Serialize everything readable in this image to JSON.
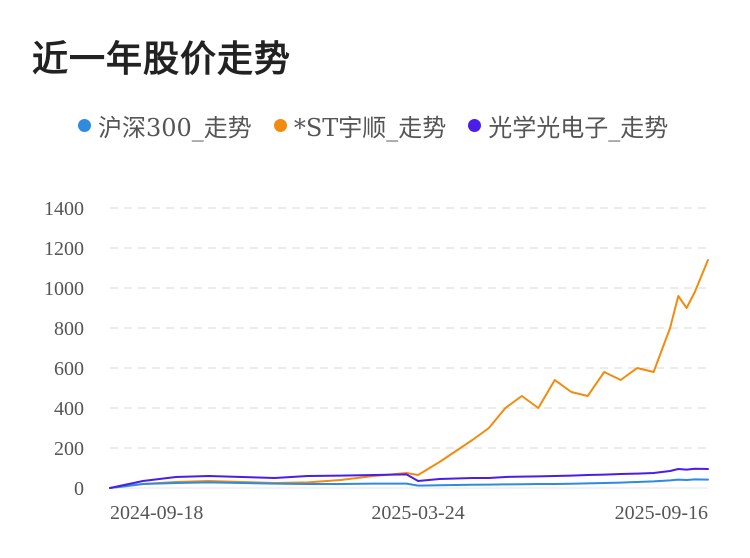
{
  "title": "近一年股价走势",
  "chart_data": {
    "type": "line",
    "title": "近一年股价走势",
    "xlabel": "",
    "ylabel": "",
    "ylim": [
      0,
      1400
    ],
    "yticks": [
      0,
      200,
      400,
      600,
      800,
      1000,
      1200,
      1400
    ],
    "xticks": [
      "2024-09-18",
      "2025-03-24",
      "2025-09-16"
    ],
    "grid": "horizontal-dashed",
    "legend": "top-left",
    "x": [
      "2024-09-18",
      "2024-10-08",
      "2024-10-28",
      "2024-11-17",
      "2024-12-07",
      "2024-12-27",
      "2025-01-16",
      "2025-02-05",
      "2025-02-25",
      "2025-03-17",
      "2025-03-24",
      "2025-04-06",
      "2025-04-26",
      "2025-05-06",
      "2025-05-16",
      "2025-05-26",
      "2025-06-05",
      "2025-06-15",
      "2025-06-25",
      "2025-07-05",
      "2025-07-15",
      "2025-07-25",
      "2025-08-04",
      "2025-08-14",
      "2025-08-24",
      "2025-08-29",
      "2025-09-03",
      "2025-09-08",
      "2025-09-16"
    ],
    "series": [
      {
        "name": "沪深300_走势",
        "color": "#2e8be0",
        "values": [
          0,
          20,
          25,
          28,
          25,
          22,
          20,
          20,
          22,
          22,
          12,
          14,
          16,
          17,
          18,
          19,
          20,
          20,
          21,
          23,
          25,
          27,
          30,
          33,
          38,
          42,
          40,
          43,
          42
        ]
      },
      {
        "name": "*ST宇顺_走势",
        "color": "#f28c0f",
        "values": [
          0,
          20,
          30,
          35,
          30,
          25,
          28,
          40,
          60,
          75,
          65,
          130,
          240,
          300,
          400,
          460,
          400,
          540,
          480,
          460,
          580,
          540,
          600,
          580,
          800,
          960,
          900,
          980,
          1140
        ]
      },
      {
        "name": "光学光电子_走势",
        "color": "#4a1ee8",
        "values": [
          0,
          35,
          55,
          60,
          55,
          50,
          60,
          62,
          65,
          68,
          35,
          45,
          50,
          50,
          55,
          57,
          58,
          60,
          62,
          65,
          67,
          70,
          72,
          75,
          85,
          95,
          92,
          96,
          95
        ]
      }
    ]
  }
}
